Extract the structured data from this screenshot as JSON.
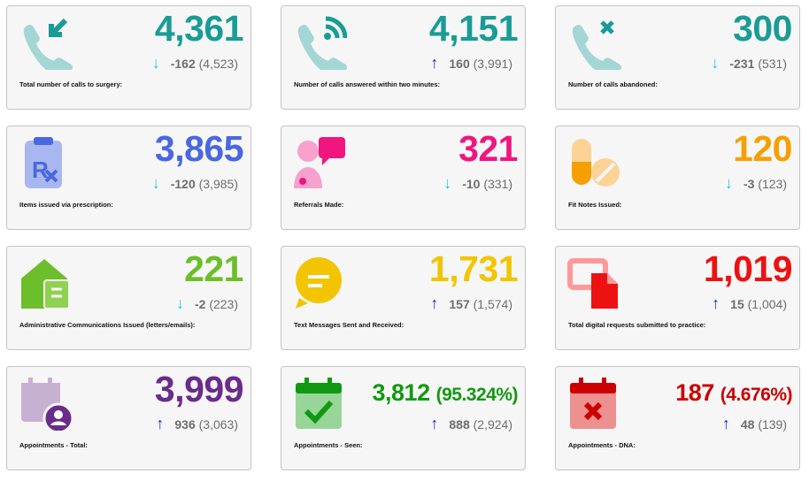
{
  "cards": [
    {
      "value": "4,361",
      "pct": "",
      "delta": "-162",
      "prev": "(4,523)",
      "dir": "down",
      "label": "Total number of calls to surgery:",
      "icon": "phone-incoming-icon",
      "color": "#1a9c96"
    },
    {
      "value": "4,151",
      "pct": "",
      "delta": "160",
      "prev": "(3,991)",
      "dir": "up",
      "label": "Number of calls answered within two minutes:",
      "icon": "phone-signal-icon",
      "color": "#1a9c96"
    },
    {
      "value": "300",
      "pct": "",
      "delta": "-231",
      "prev": "(531)",
      "dir": "down",
      "label": "Number of calls abandoned:",
      "icon": "phone-missed-icon",
      "color": "#1a9c96"
    },
    {
      "value": "3,865",
      "pct": "",
      "delta": "-120",
      "prev": "(3,985)",
      "dir": "down",
      "label": "Items issued via prescription:",
      "icon": "prescription-icon",
      "color": "#4a67e0"
    },
    {
      "value": "321",
      "pct": "",
      "delta": "-10",
      "prev": "(331)",
      "dir": "down",
      "label": "Referrals Made:",
      "icon": "doctor-chat-icon",
      "color": "#f0157f"
    },
    {
      "value": "120",
      "pct": "",
      "delta": "-3",
      "prev": "(123)",
      "dir": "down",
      "label": "Fit Notes Issued:",
      "icon": "pills-icon",
      "color": "#f5a000"
    },
    {
      "value": "221",
      "pct": "",
      "delta": "-2",
      "prev": "(223)",
      "dir": "down",
      "label": "Administrative Communications Issued (letters/emails):",
      "icon": "mail-house-icon",
      "color": "#6cbf2a"
    },
    {
      "value": "1,731",
      "pct": "",
      "delta": "157",
      "prev": "(1,574)",
      "dir": "up",
      "label": "Text Messages Sent and Received:",
      "icon": "message-icon",
      "color": "#f2c500"
    },
    {
      "value": "1,019",
      "pct": "",
      "delta": "15",
      "prev": "(1,004)",
      "dir": "up",
      "label": "Total digital requests submitted to practice:",
      "icon": "digital-request-icon",
      "color": "#ee1111"
    },
    {
      "value": "3,999",
      "pct": "",
      "delta": "936",
      "prev": "(3,063)",
      "dir": "up",
      "label": "Appointments - Total:",
      "icon": "calendar-user-icon",
      "color": "#6a2c8a"
    },
    {
      "value": "3,812",
      "pct": "(95.324%)",
      "delta": "888",
      "prev": "(2,924)",
      "dir": "up",
      "label": "Appointments - Seen:",
      "icon": "calendar-check-icon",
      "color": "#119911"
    },
    {
      "value": "187",
      "pct": "(4.676%)",
      "delta": "48",
      "prev": "(139)",
      "dir": "up",
      "label": "Appointments - DNA:",
      "icon": "calendar-x-icon",
      "color": "#cc0000"
    }
  ],
  "arrows": {
    "up": "↑",
    "down": "↓",
    "up_color": "#1a1aee",
    "down_color": "#1ec8ee"
  }
}
